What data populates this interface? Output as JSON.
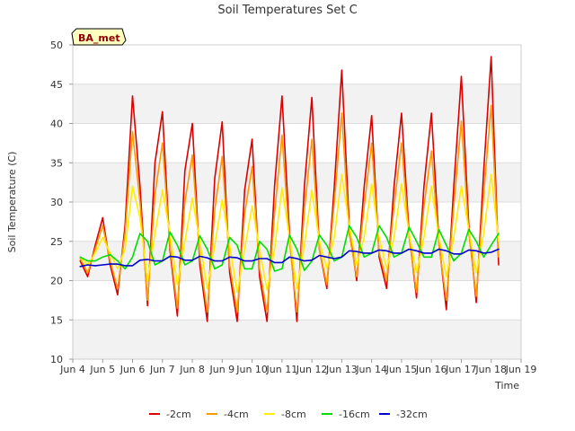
{
  "chart_data": {
    "type": "line",
    "title": "Soil Temperatures Set C",
    "xlabel": "Time",
    "ylabel": "Soil Temperature (C)",
    "badge": "BA_met",
    "xlim": [
      4,
      19
    ],
    "ylim": [
      10,
      50
    ],
    "x_ticks": [
      {
        "value": 4,
        "label": "Jun 4"
      },
      {
        "value": 5,
        "label": "Jun 5"
      },
      {
        "value": 6,
        "label": "Jun 6"
      },
      {
        "value": 7,
        "label": "Jun 7"
      },
      {
        "value": 8,
        "label": "Jun 8"
      },
      {
        "value": 9,
        "label": "Jun 9"
      },
      {
        "value": 10,
        "label": "Jun 10"
      },
      {
        "value": 11,
        "label": "Jun 11"
      },
      {
        "value": 12,
        "label": "Jun 12"
      },
      {
        "value": 13,
        "label": "Jun 13"
      },
      {
        "value": 14,
        "label": "Jun 14"
      },
      {
        "value": 15,
        "label": "Jun 15"
      },
      {
        "value": 16,
        "label": "Jun 16"
      },
      {
        "value": 17,
        "label": "Jun 17"
      },
      {
        "value": 18,
        "label": "Jun 18"
      },
      {
        "value": 19,
        "label": "Jun 19"
      }
    ],
    "y_ticks": [
      10,
      15,
      20,
      25,
      30,
      35,
      40,
      45,
      50
    ],
    "grid": true,
    "legend_position": "bottom",
    "series": [
      {
        "name": "-2cm",
        "color": "#dd0000",
        "x": [
          4.25,
          4.5,
          4.75,
          5.0,
          5.25,
          5.5,
          5.75,
          6.0,
          6.25,
          6.5,
          6.75,
          7.0,
          7.25,
          7.5,
          7.75,
          8.0,
          8.25,
          8.5,
          8.75,
          9.0,
          9.25,
          9.5,
          9.75,
          10.0,
          10.25,
          10.5,
          10.75,
          11.0,
          11.25,
          11.5,
          11.75,
          12.0,
          12.25,
          12.5,
          12.75,
          13.0,
          13.25,
          13.5,
          13.75,
          14.0,
          14.25,
          14.5,
          14.75,
          15.0,
          15.25,
          15.5,
          15.75,
          16.0,
          16.25,
          16.5,
          16.75,
          17.0,
          17.25,
          17.5,
          17.75,
          18.0,
          18.25
        ],
        "y": [
          22.5,
          20.5,
          24.5,
          28.0,
          22.0,
          18.2,
          27.0,
          43.5,
          32.0,
          16.8,
          35.0,
          41.5,
          24.0,
          15.5,
          34.0,
          40.0,
          22.0,
          14.8,
          33.0,
          40.2,
          21.0,
          14.8,
          31.5,
          38.0,
          20.5,
          14.8,
          32.0,
          43.5,
          26.0,
          14.8,
          32.0,
          43.3,
          24.0,
          19.0,
          32.0,
          46.8,
          27.0,
          20.0,
          32.0,
          41.0,
          23.0,
          19.0,
          32.0,
          41.3,
          26.0,
          17.8,
          32.0,
          41.3,
          25.0,
          16.3,
          32.0,
          46.0,
          27.0,
          17.2,
          34.0,
          48.5,
          22.0
        ]
      },
      {
        "name": "-4cm",
        "color": "#ff9900",
        "x": [
          4.25,
          4.5,
          4.75,
          5.0,
          5.25,
          5.5,
          5.75,
          6.0,
          6.25,
          6.5,
          6.75,
          7.0,
          7.25,
          7.5,
          7.75,
          8.0,
          8.25,
          8.5,
          8.75,
          9.0,
          9.25,
          9.5,
          9.75,
          10.0,
          10.25,
          10.5,
          10.75,
          11.0,
          11.25,
          11.5,
          11.75,
          12.0,
          12.25,
          12.5,
          12.75,
          13.0,
          13.25,
          13.5,
          13.75,
          14.0,
          14.25,
          14.5,
          14.75,
          15.0,
          15.25,
          15.5,
          15.75,
          16.0,
          16.25,
          16.5,
          16.75,
          17.0,
          17.25,
          17.5,
          17.75,
          18.0,
          18.25
        ],
        "y": [
          22.8,
          21.0,
          24.0,
          27.0,
          22.5,
          19.0,
          26.0,
          39.0,
          30.0,
          17.5,
          31.0,
          37.5,
          24.5,
          16.5,
          30.0,
          36.0,
          23.0,
          16.0,
          29.0,
          35.8,
          22.0,
          16.0,
          28.5,
          34.5,
          21.5,
          16.0,
          28.5,
          38.5,
          25.0,
          16.0,
          29.0,
          38.0,
          24.0,
          19.5,
          30.0,
          41.3,
          26.0,
          20.5,
          29.5,
          37.5,
          23.5,
          20.0,
          29.5,
          37.5,
          25.5,
          18.5,
          29.5,
          36.5,
          24.5,
          17.5,
          29.5,
          40.3,
          26.0,
          18.0,
          31.0,
          42.3,
          23.0
        ]
      },
      {
        "name": "-8cm",
        "color": "#ffee00",
        "x": [
          4.25,
          4.5,
          4.75,
          5.0,
          5.25,
          5.5,
          5.75,
          6.0,
          6.25,
          6.5,
          6.75,
          7.0,
          7.25,
          7.5,
          7.75,
          8.0,
          8.25,
          8.5,
          8.75,
          9.0,
          9.25,
          9.5,
          9.75,
          10.0,
          10.25,
          10.5,
          10.75,
          11.0,
          11.25,
          11.5,
          11.75,
          12.0,
          12.25,
          12.5,
          12.75,
          13.0,
          13.25,
          13.5,
          13.75,
          14.0,
          14.25,
          14.5,
          14.75,
          15.0,
          15.25,
          15.5,
          15.75,
          16.0,
          16.25,
          16.5,
          16.75,
          17.0,
          17.25,
          17.5,
          17.75,
          18.0,
          18.25
        ],
        "y": [
          23.0,
          22.0,
          23.5,
          25.5,
          23.5,
          21.5,
          24.0,
          32.0,
          28.0,
          20.0,
          26.0,
          31.5,
          26.0,
          19.5,
          25.0,
          30.5,
          25.0,
          19.0,
          24.5,
          30.3,
          24.5,
          18.5,
          24.0,
          29.5,
          24.0,
          18.8,
          24.0,
          31.8,
          25.5,
          19.0,
          24.5,
          31.5,
          25.0,
          21.5,
          25.5,
          33.5,
          27.0,
          22.0,
          25.5,
          32.3,
          25.5,
          21.5,
          25.5,
          32.3,
          26.0,
          21.0,
          25.5,
          32.0,
          25.5,
          20.5,
          25.5,
          32.0,
          26.5,
          21.0,
          26.0,
          33.5,
          25.0
        ]
      },
      {
        "name": "-16cm",
        "color": "#00dd00",
        "x": [
          4.25,
          4.5,
          4.75,
          5.0,
          5.25,
          5.5,
          5.75,
          6.0,
          6.25,
          6.5,
          6.75,
          7.0,
          7.25,
          7.5,
          7.75,
          8.0,
          8.25,
          8.5,
          8.75,
          9.0,
          9.25,
          9.5,
          9.75,
          10.0,
          10.25,
          10.5,
          10.75,
          11.0,
          11.25,
          11.5,
          11.75,
          12.0,
          12.25,
          12.5,
          12.75,
          13.0,
          13.25,
          13.5,
          13.75,
          14.0,
          14.25,
          14.5,
          14.75,
          15.0,
          15.25,
          15.5,
          15.75,
          16.0,
          16.25,
          16.5,
          16.75,
          17.0,
          17.25,
          17.5,
          17.75,
          18.0,
          18.25
        ],
        "y": [
          23.0,
          22.5,
          22.5,
          23.0,
          23.3,
          22.5,
          21.5,
          23.0,
          26.0,
          25.0,
          22.0,
          22.5,
          26.2,
          24.5,
          22.0,
          22.5,
          25.7,
          24.0,
          21.5,
          22.0,
          25.5,
          24.5,
          21.5,
          21.5,
          25.0,
          24.0,
          21.2,
          21.5,
          25.8,
          24.0,
          21.3,
          22.5,
          25.8,
          24.5,
          22.5,
          23.0,
          27.0,
          25.5,
          23.0,
          23.5,
          27.0,
          25.5,
          23.0,
          23.5,
          26.8,
          25.0,
          23.0,
          23.0,
          26.5,
          24.5,
          22.5,
          23.5,
          26.5,
          25.0,
          23.0,
          24.5,
          26.0
        ]
      },
      {
        "name": "-32cm",
        "color": "#0000cc",
        "x": [
          4.25,
          4.5,
          4.75,
          5.0,
          5.25,
          5.5,
          5.75,
          6.0,
          6.25,
          6.5,
          6.75,
          7.0,
          7.25,
          7.5,
          7.75,
          8.0,
          8.25,
          8.5,
          8.75,
          9.0,
          9.25,
          9.5,
          9.75,
          10.0,
          10.25,
          10.5,
          10.75,
          11.0,
          11.25,
          11.5,
          11.75,
          12.0,
          12.25,
          12.5,
          12.75,
          13.0,
          13.25,
          13.5,
          13.75,
          14.0,
          14.25,
          14.5,
          14.75,
          15.0,
          15.25,
          15.5,
          15.75,
          16.0,
          16.25,
          16.5,
          16.75,
          17.0,
          17.25,
          17.5,
          17.75,
          18.0,
          18.25
        ],
        "y": [
          21.8,
          22.0,
          21.9,
          22.0,
          22.1,
          22.1,
          21.9,
          21.9,
          22.6,
          22.7,
          22.5,
          22.5,
          23.1,
          23.0,
          22.6,
          22.6,
          23.1,
          22.9,
          22.5,
          22.5,
          23.0,
          22.9,
          22.5,
          22.5,
          22.8,
          22.8,
          22.3,
          22.3,
          23.0,
          22.8,
          22.5,
          22.6,
          23.2,
          23.0,
          22.8,
          23.0,
          23.8,
          23.7,
          23.5,
          23.5,
          23.9,
          23.8,
          23.5,
          23.5,
          24.0,
          23.8,
          23.5,
          23.5,
          24.0,
          23.8,
          23.4,
          23.4,
          23.9,
          23.8,
          23.5,
          23.6,
          24.0
        ]
      }
    ]
  }
}
